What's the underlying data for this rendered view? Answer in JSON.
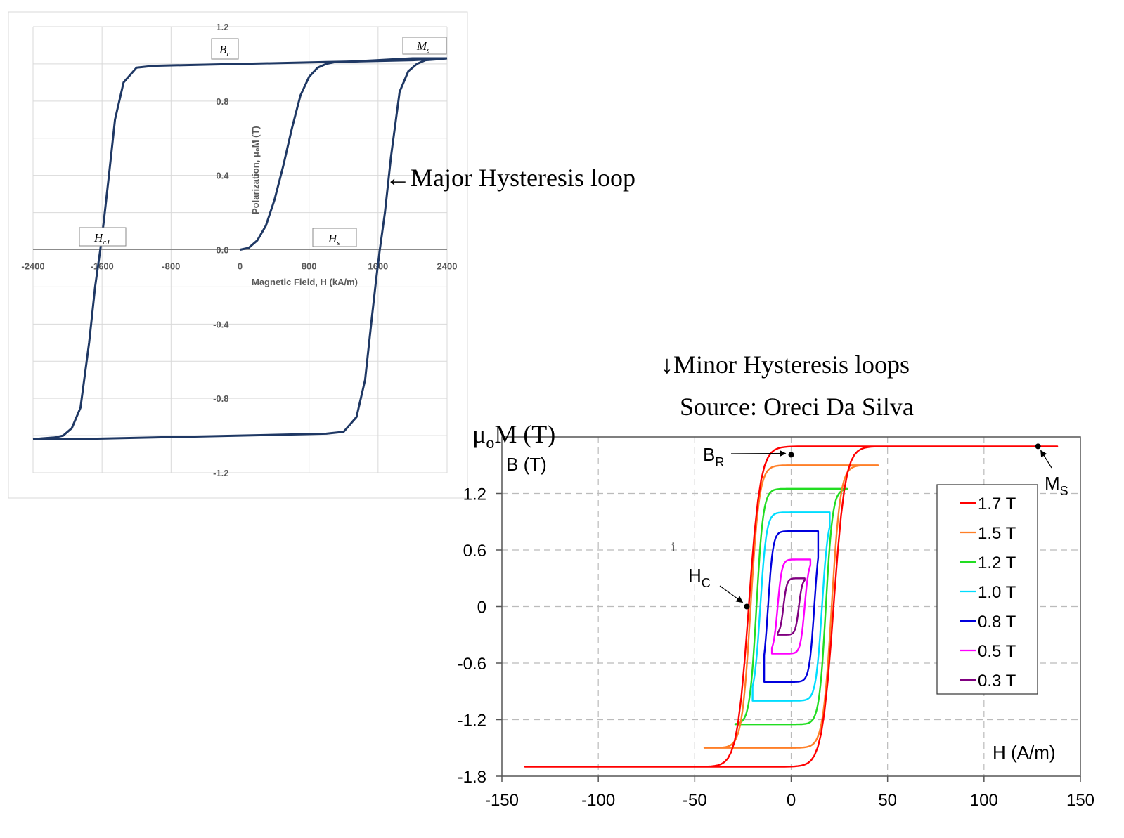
{
  "headings": {
    "major": "←Major Hysteresis loop",
    "minor": "↓Minor Hysteresis loops",
    "source": "Source: Oreci Da Silva"
  },
  "chart_data": [
    {
      "type": "line",
      "xlabel": "Magnetic Field, H (kA/m)",
      "ylabel": "Polarization, μ₀M (T)",
      "xlim": [
        -2400,
        2400
      ],
      "ylim": [
        -1.2,
        1.2
      ],
      "xticks": [
        "-2400",
        "-1600",
        "-800",
        "0",
        "800",
        "1600",
        "2400"
      ],
      "yticks": [
        "1.2",
        "0.8",
        "0.4",
        "0.0",
        "-0.4",
        "-0.8",
        "-1.2"
      ],
      "grid": true,
      "series": [
        {
          "role": "major-loop-descending",
          "color": "#1f3864",
          "x": [
            2400,
            2000,
            1000,
            0,
            -1000,
            -1200,
            -1350,
            -1450,
            -1520,
            -1580,
            -1620,
            -1680,
            -1750,
            -1850,
            -1950,
            -2050,
            -2150,
            -2300,
            -2400
          ],
          "y": [
            1.03,
            1.02,
            1.01,
            1.0,
            0.99,
            0.98,
            0.9,
            0.7,
            0.4,
            0.15,
            0.0,
            -0.2,
            -0.5,
            -0.85,
            -0.96,
            -1.0,
            -1.01,
            -1.015,
            -1.02
          ]
        },
        {
          "role": "major-loop-ascending",
          "color": "#1f3864",
          "x": [
            -2400,
            -2000,
            -1000,
            0,
            1000,
            1200,
            1350,
            1450,
            1520,
            1580,
            1620,
            1680,
            1750,
            1850,
            1950,
            2050,
            2150,
            2300,
            2400
          ],
          "y": [
            -1.02,
            -1.02,
            -1.01,
            -1.0,
            -0.99,
            -0.98,
            -0.9,
            -0.7,
            -0.4,
            -0.15,
            0.0,
            0.2,
            0.5,
            0.85,
            0.96,
            1.0,
            1.02,
            1.025,
            1.03
          ]
        },
        {
          "role": "initial-magnetization",
          "color": "#1f3864",
          "x": [
            0,
            100,
            200,
            300,
            400,
            500,
            600,
            700,
            800,
            900,
            1000,
            1100,
            1200,
            1400,
            1600,
            1800,
            2000,
            2200,
            2400
          ],
          "y": [
            0.0,
            0.01,
            0.05,
            0.13,
            0.27,
            0.45,
            0.65,
            0.83,
            0.93,
            0.98,
            1.0,
            1.01,
            1.01,
            1.015,
            1.02,
            1.025,
            1.03,
            1.03,
            1.03
          ]
        }
      ],
      "annotations": [
        {
          "base": "B",
          "sub": "r"
        },
        {
          "base": "M",
          "sub": "s"
        },
        {
          "base": "H",
          "sub": "cJ"
        },
        {
          "base": "H",
          "sub": "s"
        }
      ]
    },
    {
      "type": "line",
      "xlabel": "H (A/m)",
      "ylabel_top": "μ",
      "ylabel_sub": "o",
      "ylabel_rest": "M (T)",
      "ylabel_inner": "B (T)",
      "xlim": [
        -150,
        150
      ],
      "ylim": [
        -1.8,
        1.8
      ],
      "xticks": [
        "-150",
        "-100",
        "-50",
        "0",
        "50",
        "100",
        "150"
      ],
      "yticks": [
        "1.2",
        "0.6",
        "0",
        "-0.6",
        "-1.2",
        "-1.8"
      ],
      "grid": true,
      "legend_position": "right",
      "stray_text": "i",
      "loops": [
        {
          "name": "1.7 T",
          "color": "#ff0000",
          "a": 1.7,
          "hc": 22,
          "w": 6,
          "hm": 138
        },
        {
          "name": "1.5 T",
          "color": "#ff7f27",
          "a": 1.5,
          "hc": 21,
          "w": 4.5,
          "hm": 45
        },
        {
          "name": "1.2 T",
          "color": "#22dd22",
          "a": 1.25,
          "hc": 18,
          "w": 3.5,
          "hm": 29
        },
        {
          "name": "1.0 T",
          "color": "#00ddff",
          "a": 1.0,
          "hc": 16,
          "w": 3.2,
          "hm": 20
        },
        {
          "name": "0.8 T",
          "color": "#0000dd",
          "a": 0.8,
          "hc": 12,
          "w": 2.6,
          "hm": 14
        },
        {
          "name": "0.5 T",
          "color": "#ff00ff",
          "a": 0.5,
          "hc": 7,
          "w": 2.2,
          "hm": 10
        },
        {
          "name": "0.3 T",
          "color": "#800080",
          "a": 0.3,
          "hc": 4,
          "w": 1.8,
          "hm": 7
        }
      ],
      "markers": [
        {
          "base": "B",
          "sub": "R",
          "x": 0,
          "y": 1.61
        },
        {
          "base": "H",
          "sub": "C",
          "x": -23,
          "y": 0
        },
        {
          "base": "M",
          "sub": "S",
          "x": 128,
          "y": 1.7
        }
      ]
    }
  ]
}
